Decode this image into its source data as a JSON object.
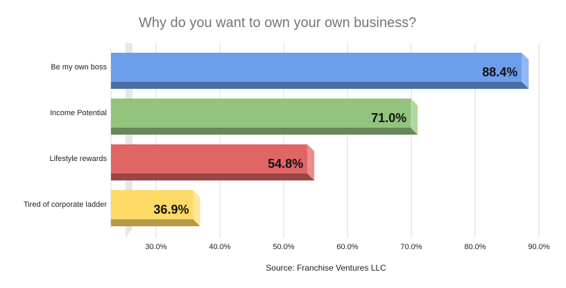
{
  "chart_data": {
    "type": "bar",
    "orientation": "horizontal",
    "title": "Why do you want to own your own business?",
    "xlabel": "Source: Franchise Ventures LLC",
    "ylabel": "",
    "categories": [
      "Be my own boss",
      "Income Potential",
      "Lifestyle rewards",
      "Tired of corporate ladder"
    ],
    "values": [
      88.4,
      71.0,
      54.8,
      36.9
    ],
    "data_labels": [
      "88.4%",
      "71.0%",
      "54.8%",
      "36.9%"
    ],
    "colors": [
      "#6D9EEB",
      "#93C47D",
      "#E06666",
      "#FFD966"
    ],
    "side_colors": [
      "#4A6CA6",
      "#66875A",
      "#9B4646",
      "#B39B46"
    ],
    "end_colors": [
      "#8FB8F5",
      "#B1D89E",
      "#EC8C8C",
      "#FFE699"
    ],
    "xlim": [
      20,
      90
    ],
    "xticks": [
      30,
      40,
      50,
      60,
      70,
      80,
      90
    ],
    "xtick_labels": [
      "30.0%",
      "40.0%",
      "50.0%",
      "60.0%",
      "70.0%",
      "80.0%",
      "90.0%"
    ],
    "grid": true,
    "legend": "none",
    "style": "3d"
  }
}
